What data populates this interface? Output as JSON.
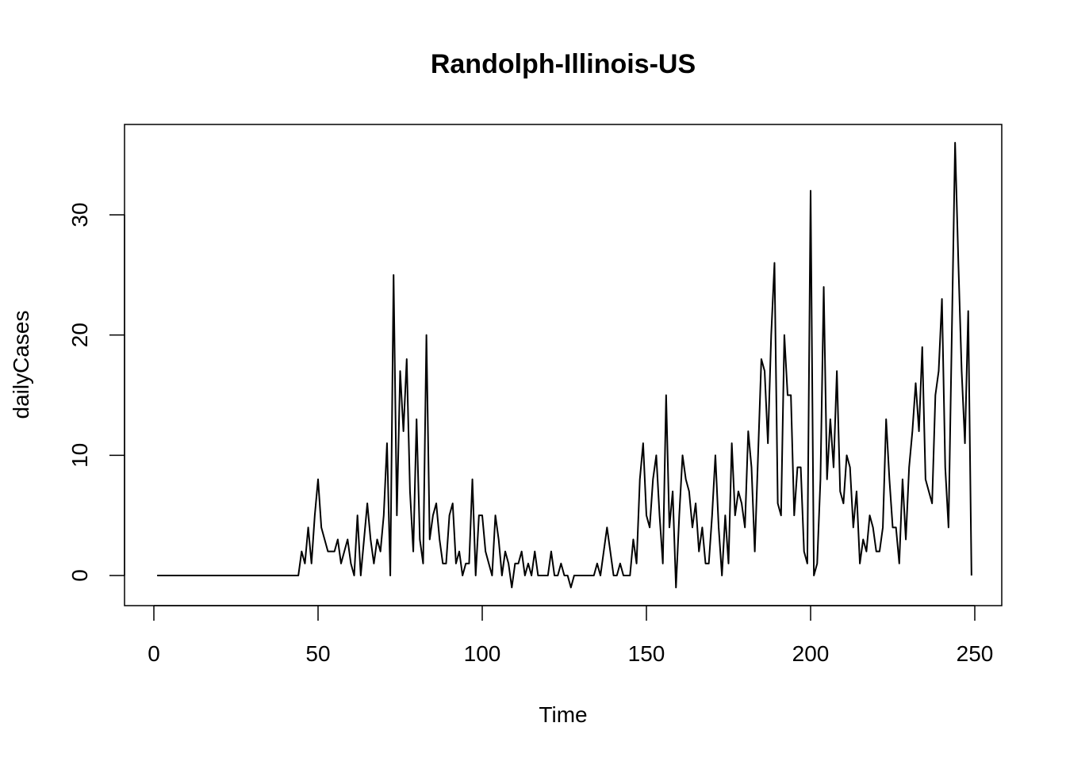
{
  "chart_data": {
    "type": "line",
    "title": "Randolph-Illinois-US",
    "xlabel": "Time",
    "ylabel": "dailyCases",
    "xlim": [
      1,
      248
    ],
    "ylim": [
      -1,
      36
    ],
    "x_ticks": [
      0,
      50,
      100,
      150,
      200,
      250
    ],
    "y_ticks": [
      0,
      10,
      20,
      30
    ],
    "grid": false,
    "legend": "none",
    "line_color": "#000000",
    "series": [
      {
        "x_start": 1,
        "values": [
          0,
          0,
          0,
          0,
          0,
          0,
          0,
          0,
          0,
          0,
          0,
          0,
          0,
          0,
          0,
          0,
          0,
          0,
          0,
          0,
          0,
          0,
          0,
          0,
          0,
          0,
          0,
          0,
          0,
          0,
          0,
          0,
          0,
          0,
          0,
          0,
          0,
          0,
          0,
          0,
          0,
          0,
          0,
          0,
          2,
          1,
          4,
          1,
          5,
          8,
          4,
          3,
          2,
          2,
          2,
          3,
          1,
          2,
          3,
          1,
          0,
          5,
          0,
          3,
          6,
          3,
          1,
          3,
          2,
          5,
          11,
          0,
          25,
          5,
          17,
          12,
          18,
          7,
          2,
          13,
          3,
          1,
          20,
          3,
          5,
          6,
          3,
          1,
          1,
          5,
          6,
          1,
          2,
          0,
          1,
          1,
          8,
          0,
          5,
          5,
          2,
          1,
          0,
          5,
          3,
          0,
          2,
          1,
          -1,
          1,
          1,
          2,
          0,
          1,
          0,
          2,
          0,
          0,
          0,
          0,
          2,
          0,
          0,
          1,
          0,
          0,
          -1,
          0,
          0,
          0,
          0,
          0,
          0,
          0,
          1,
          0,
          2,
          4,
          2,
          0,
          0,
          1,
          0,
          0,
          0,
          3,
          1,
          8,
          11,
          5,
          4,
          8,
          10,
          5,
          1,
          15,
          4,
          7,
          -1,
          5,
          10,
          8,
          7,
          4,
          6,
          2,
          4,
          1,
          1,
          5,
          10,
          4,
          0,
          5,
          1,
          11,
          5,
          7,
          6,
          4,
          12,
          9,
          2,
          10,
          18,
          17,
          11,
          20,
          26,
          6,
          5,
          20,
          15,
          15,
          5,
          9,
          9,
          2,
          1,
          32,
          0,
          1,
          8,
          24,
          8,
          13,
          9,
          17,
          7,
          6,
          10,
          9,
          4,
          7,
          1,
          3,
          2,
          5,
          4,
          2,
          2,
          4,
          13,
          8,
          4,
          4,
          1,
          8,
          3,
          9,
          12,
          16,
          12,
          19,
          8,
          7,
          6,
          15,
          17,
          23,
          9,
          4,
          20,
          36,
          26,
          17,
          11,
          22,
          0
        ]
      }
    ]
  }
}
